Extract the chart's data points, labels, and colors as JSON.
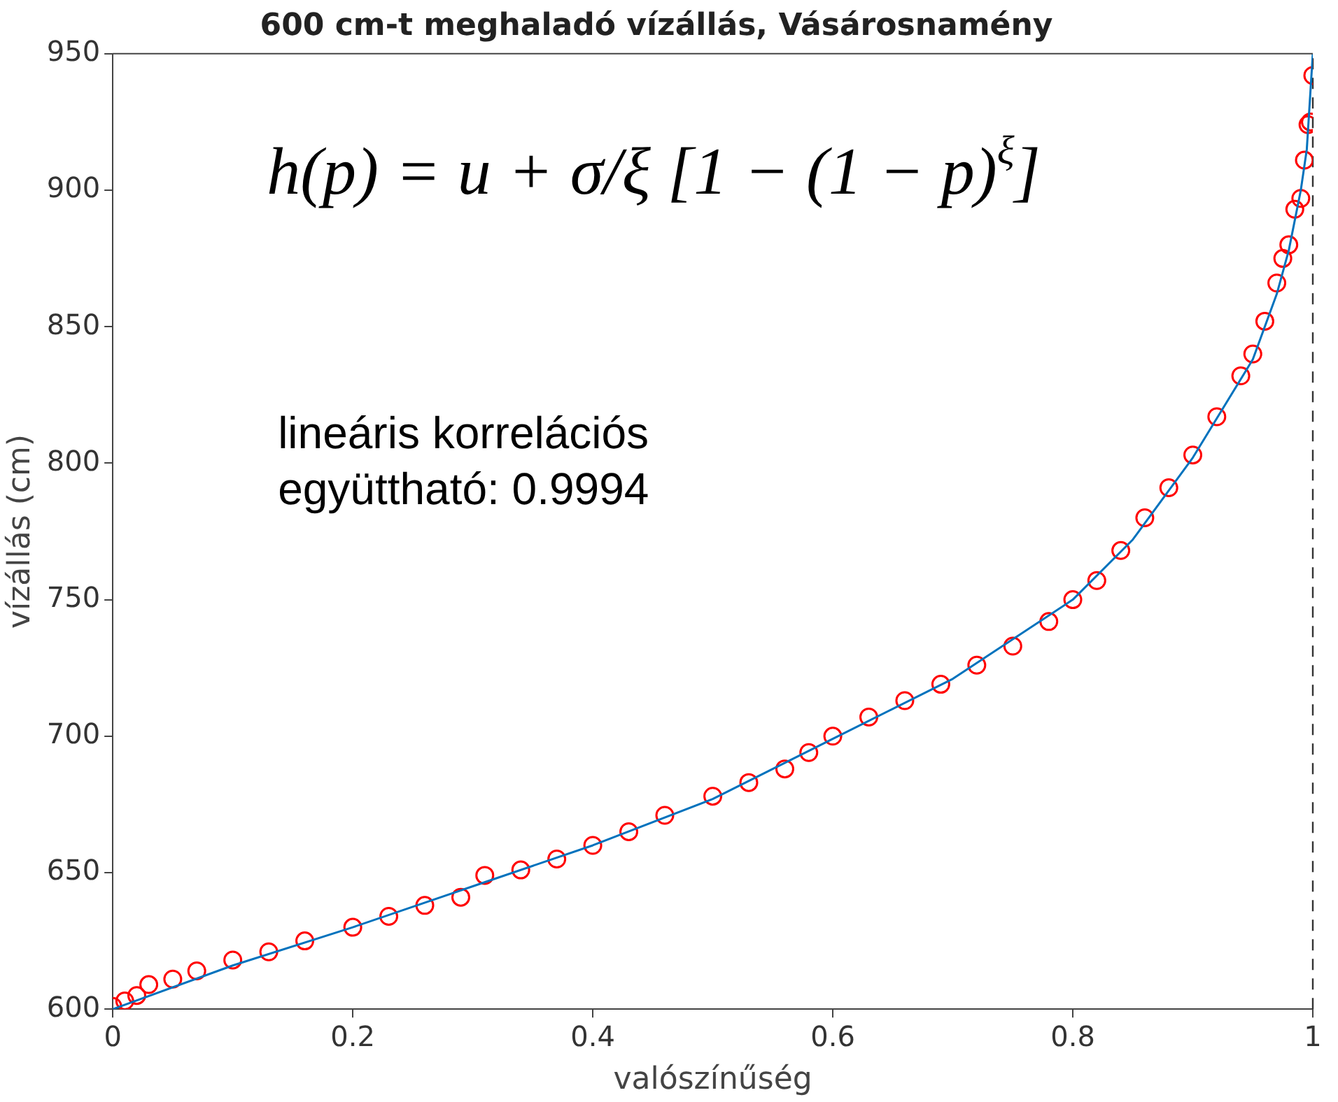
{
  "chart_data": {
    "type": "scatter",
    "title": "600 cm-t meghaladó vízállás, Vásárosnamény",
    "xlabel": "valószínűség",
    "ylabel": "vízállás (cm)",
    "xlim": [
      0,
      1
    ],
    "xticks": [
      0,
      0.2,
      0.4,
      0.6,
      0.8,
      1
    ],
    "ylim": [
      600,
      950
    ],
    "yticks": [
      600,
      650,
      700,
      750,
      800,
      850,
      900,
      950
    ],
    "grid": false,
    "legend": false,
    "marker": "circle",
    "annotations": [
      "h(p) = u + σ/ξ [1 − (1 − p)$^{ξ}$]",
      "lineáris korrelációs\negyüttható: 0.9994"
    ],
    "ref_lines": [
      {
        "axis": "x",
        "value": 1,
        "color": "#333333",
        "line_style": "dashed"
      }
    ],
    "series": [
      {
        "color": "#ff0000",
        "x": [
          0,
          0.01,
          0.02,
          0.03,
          0.05,
          0.07,
          0.1,
          0.13,
          0.16,
          0.2,
          0.23,
          0.26,
          0.29,
          0.31,
          0.34,
          0.37,
          0.4,
          0.43,
          0.46,
          0.5,
          0.53,
          0.56,
          0.58,
          0.6,
          0.63,
          0.66,
          0.69,
          0.72,
          0.75,
          0.78,
          0.8,
          0.82,
          0.84,
          0.86,
          0.88,
          0.9,
          0.92,
          0.94,
          0.95,
          0.96,
          0.97,
          0.975,
          0.98,
          0.985,
          0.99,
          0.993,
          0.996,
          0.998,
          1
        ],
        "values": [
          601,
          603,
          605,
          609,
          611,
          614,
          618,
          621,
          625,
          630,
          634,
          638,
          641,
          649,
          651,
          655,
          660,
          665,
          671,
          678,
          683,
          688,
          694,
          700,
          707,
          713,
          719,
          726,
          733,
          742,
          750,
          757,
          768,
          780,
          791,
          803,
          817,
          832,
          840,
          852,
          866,
          875,
          880,
          893,
          897,
          911,
          924,
          925,
          942
        ]
      },
      {
        "type": "line",
        "color": "#0072bd",
        "marker": "none",
        "line_style": "solid",
        "x": [
          0,
          0.1,
          0.2,
          0.3,
          0.4,
          0.5,
          0.6,
          0.7,
          0.8,
          0.85,
          0.9,
          0.95,
          0.97,
          0.98,
          0.99,
          0.995,
          1
        ],
        "values": [
          600,
          616,
          630,
          645,
          660,
          677,
          699,
          721,
          750,
          772,
          802,
          838,
          862,
          878,
          900,
          915,
          950
        ]
      }
    ]
  }
}
